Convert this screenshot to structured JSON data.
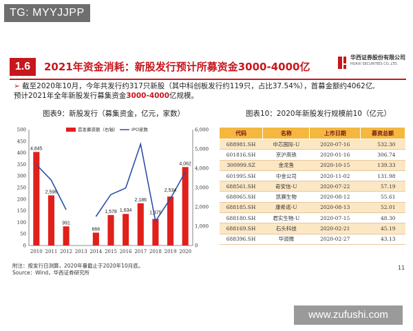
{
  "watermark_top": "TG: MYYJJPP",
  "watermark_bottom": "www.zufushi.com",
  "section": {
    "number": "1.6",
    "title": "2021年资金消耗：新股发行预计所募资金3000-4000亿"
  },
  "brand": {
    "name_cn": "华西证券股份有限公司",
    "name_en": "HUAXI SECURITIES CO.,LTD."
  },
  "bullet": {
    "arrow": "➢",
    "line1": "截至2020年10月，今年共发行约317只新股（其中科创板发行约119只，占比37.54%），首募金额约4062亿,",
    "line2_before": "预计2021年全年新股发行募集资金",
    "line2_highlight": "3000-4000",
    "line2_after": "亿规模。"
  },
  "figure_left_title": "图表9：新股发行（募集资金，亿元，家数）",
  "figure_right_title": "图表10：2020年新股发行规模前10（亿元）",
  "chart_data": {
    "type": "bar",
    "categories": [
      "2010",
      "2011",
      "2012",
      "2013",
      "2014",
      "2015",
      "2016",
      "2017",
      "2018",
      "2019",
      "2020"
    ],
    "series": [
      {
        "name": "首发募资额（右轴）",
        "type": "bar",
        "axis": "right",
        "values": [
          4845,
          2596,
          991,
          0,
          666,
          1578,
          1634,
          2186,
          1375,
          2534,
          4062
        ],
        "labels": [
          "4,845",
          "2,596",
          "991",
          "",
          "666",
          "1,578",
          "1,634",
          "2,186",
          "1,375",
          "2,534",
          "4,062"
        ],
        "color": "#e0201b"
      },
      {
        "name": "IPO家数",
        "type": "line",
        "axis": "left",
        "values": [
          349,
          282,
          154,
          null,
          125,
          220,
          248,
          438,
          105,
          202,
          317
        ],
        "color": "#2a4fa8"
      }
    ],
    "left_axis": {
      "ticks": [
        "0",
        "50",
        "100",
        "150",
        "200",
        "250",
        "300",
        "350",
        "400",
        "450",
        "500"
      ],
      "range": [
        0,
        500
      ]
    },
    "right_axis": {
      "ticks": [
        "0",
        "1,000",
        "2,000",
        "3,000",
        "4,000",
        "5,000",
        "6,000"
      ],
      "range": [
        0,
        6000
      ]
    },
    "legend_position": "top-center"
  },
  "table": {
    "headers": [
      "代码",
      "名称",
      "上市日期",
      "募资总额"
    ],
    "rows": [
      [
        "688981.SH",
        "中芯国际-U",
        "2020-07-16",
        "532.30"
      ],
      [
        "601816.SH",
        "京沪高铁",
        "2020-01-16",
        "306.74"
      ],
      [
        "300999.SZ",
        "金龙鱼",
        "2020-10-15",
        "139.33"
      ],
      [
        "601995.SH",
        "中金公司",
        "2020-11-02",
        "131.98"
      ],
      [
        "688561.SH",
        "奇安信-U",
        "2020-07-22",
        "57.19"
      ],
      [
        "688065.SH",
        "凯赛生物",
        "2020-08-12",
        "55.61"
      ],
      [
        "688185.SH",
        "康希诺-U",
        "2020-08-13",
        "52.01"
      ],
      [
        "688180.SH",
        "君实生物-U",
        "2020-07-15",
        "48.30"
      ],
      [
        "688169.SH",
        "石头科技",
        "2020-02-21",
        "45.19"
      ],
      [
        "688396.SH",
        "华润微",
        "2020-02-27",
        "43.13"
      ]
    ]
  },
  "note": {
    "line1": "附注：按发行日测算，2020年量截止于2020年10月底。",
    "line2": "Source：Wind，华西证券研究所"
  },
  "page_number": "11"
}
